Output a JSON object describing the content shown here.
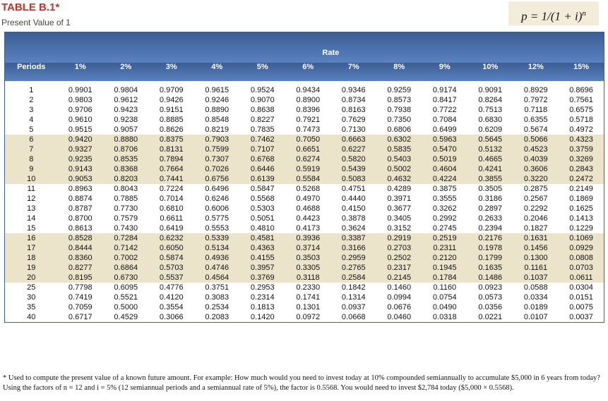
{
  "header": {
    "title": "TABLE B.1*",
    "subtitle": "Present Value of 1",
    "formula": {
      "base": "p = 1/(1 + i)",
      "exponent": "n"
    }
  },
  "table": {
    "group_label": "Rate",
    "columns": [
      "Periods",
      "1%",
      "2%",
      "3%",
      "4%",
      "5%",
      "6%",
      "7%",
      "8%",
      "9%",
      "10%",
      "12%",
      "15%"
    ],
    "rows": [
      [
        "1",
        "0.9901",
        "0.9804",
        "0.9709",
        "0.9615",
        "0.9524",
        "0.9434",
        "0.9346",
        "0.9259",
        "0.9174",
        "0.9091",
        "0.8929",
        "0.8696"
      ],
      [
        "2",
        "0.9803",
        "0.9612",
        "0.9426",
        "0.9246",
        "0.9070",
        "0.8900",
        "0.8734",
        "0.8573",
        "0.8417",
        "0.8264",
        "0.7972",
        "0.7561"
      ],
      [
        "3",
        "0.9706",
        "0.9423",
        "0.9151",
        "0.8890",
        "0.8638",
        "0.8396",
        "0.8163",
        "0.7938",
        "0.7722",
        "0.7513",
        "0.7118",
        "0.6575"
      ],
      [
        "4",
        "0.9610",
        "0.9238",
        "0.8885",
        "0.8548",
        "0.8227",
        "0.7921",
        "0.7629",
        "0.7350",
        "0.7084",
        "0.6830",
        "0.6355",
        "0.5718"
      ],
      [
        "5",
        "0.9515",
        "0.9057",
        "0.8626",
        "0.8219",
        "0.7835",
        "0.7473",
        "0.7130",
        "0.6806",
        "0.6499",
        "0.6209",
        "0.5674",
        "0.4972"
      ],
      [
        "6",
        "0.9420",
        "0.8880",
        "0.8375",
        "0.7903",
        "0.7462",
        "0.7050",
        "0.6663",
        "0.6302",
        "0.5963",
        "0.5645",
        "0.5066",
        "0.4323"
      ],
      [
        "7",
        "0.9327",
        "0.8706",
        "0.8131",
        "0.7599",
        "0.7107",
        "0.6651",
        "0.6227",
        "0.5835",
        "0.5470",
        "0.5132",
        "0.4523",
        "0.3759"
      ],
      [
        "8",
        "0.9235",
        "0.8535",
        "0.7894",
        "0.7307",
        "0.6768",
        "0.6274",
        "0.5820",
        "0.5403",
        "0.5019",
        "0.4665",
        "0.4039",
        "0.3269"
      ],
      [
        "9",
        "0.9143",
        "0.8368",
        "0.7664",
        "0.7026",
        "0.6446",
        "0.5919",
        "0.5439",
        "0.5002",
        "0.4604",
        "0.4241",
        "0.3606",
        "0.2843"
      ],
      [
        "10",
        "0.9053",
        "0.8203",
        "0.7441",
        "0.6756",
        "0.6139",
        "0.5584",
        "0.5083",
        "0.4632",
        "0.4224",
        "0.3855",
        "0.3220",
        "0.2472"
      ],
      [
        "11",
        "0.8963",
        "0.8043",
        "0.7224",
        "0.6496",
        "0.5847",
        "0.5268",
        "0.4751",
        "0.4289",
        "0.3875",
        "0.3505",
        "0.2875",
        "0.2149"
      ],
      [
        "12",
        "0.8874",
        "0.7885",
        "0.7014",
        "0.6246",
        "0.5568",
        "0.4970",
        "0.4440",
        "0.3971",
        "0.3555",
        "0.3186",
        "0.2567",
        "0.1869"
      ],
      [
        "13",
        "0.8787",
        "0.7730",
        "0.6810",
        "0.6006",
        "0.5303",
        "0.4688",
        "0.4150",
        "0.3677",
        "0.3262",
        "0.2897",
        "0.2292",
        "0.1625"
      ],
      [
        "14",
        "0.8700",
        "0.7579",
        "0.6611",
        "0.5775",
        "0.5051",
        "0.4423",
        "0.3878",
        "0.3405",
        "0.2992",
        "0.2633",
        "0.2046",
        "0.1413"
      ],
      [
        "15",
        "0.8613",
        "0.7430",
        "0.6419",
        "0.5553",
        "0.4810",
        "0.4173",
        "0.3624",
        "0.3152",
        "0.2745",
        "0.2394",
        "0.1827",
        "0.1229"
      ],
      [
        "16",
        "0.8528",
        "0.7284",
        "0.6232",
        "0.5339",
        "0.4581",
        "0.3936",
        "0.3387",
        "0.2919",
        "0.2519",
        "0.2176",
        "0.1631",
        "0.1069"
      ],
      [
        "17",
        "0.8444",
        "0.7142",
        "0.6050",
        "0.5134",
        "0.4363",
        "0.3714",
        "0.3166",
        "0.2703",
        "0.2311",
        "0.1978",
        "0.1456",
        "0.0929"
      ],
      [
        "18",
        "0.8360",
        "0.7002",
        "0.5874",
        "0.4936",
        "0.4155",
        "0.3503",
        "0.2959",
        "0.2502",
        "0.2120",
        "0.1799",
        "0.1300",
        "0.0808"
      ],
      [
        "19",
        "0.8277",
        "0.6864",
        "0.5703",
        "0.4746",
        "0.3957",
        "0.3305",
        "0.2765",
        "0.2317",
        "0.1945",
        "0.1635",
        "0.1161",
        "0.0703"
      ],
      [
        "20",
        "0.8195",
        "0.6730",
        "0.5537",
        "0.4564",
        "0.3769",
        "0.3118",
        "0.2584",
        "0.2145",
        "0.1784",
        "0.1486",
        "0.1037",
        "0.0611"
      ],
      [
        "25",
        "0.7798",
        "0.6095",
        "0.4776",
        "0.3751",
        "0.2953",
        "0.2330",
        "0.1842",
        "0.1460",
        "0.1160",
        "0.0923",
        "0.0588",
        "0.0304"
      ],
      [
        "30",
        "0.7419",
        "0.5521",
        "0.4120",
        "0.3083",
        "0.2314",
        "0.1741",
        "0.1314",
        "0.0994",
        "0.0754",
        "0.0573",
        "0.0334",
        "0.0151"
      ],
      [
        "35",
        "0.7059",
        "0.5000",
        "0.3554",
        "0.2534",
        "0.1813",
        "0.1301",
        "0.0937",
        "0.0676",
        "0.0490",
        "0.0356",
        "0.0189",
        "0.0075"
      ],
      [
        "40",
        "0.6717",
        "0.4529",
        "0.3066",
        "0.2083",
        "0.1420",
        "0.0972",
        "0.0668",
        "0.0460",
        "0.0318",
        "0.0221",
        "0.0107",
        "0.0037"
      ]
    ]
  },
  "footnote": "* Used to compute the present value of a known future amount. For example: How much would you need to invest today at 10% compounded semiannually to accumulate $5,000 in 6 years from today? Using the factors of n = 12 and i = 5% (12 semiannual periods and a semiannual rate of 5%), the factor is 0.5568. You would need to invest $2,784 today ($5,000 × 0.5568)."
}
